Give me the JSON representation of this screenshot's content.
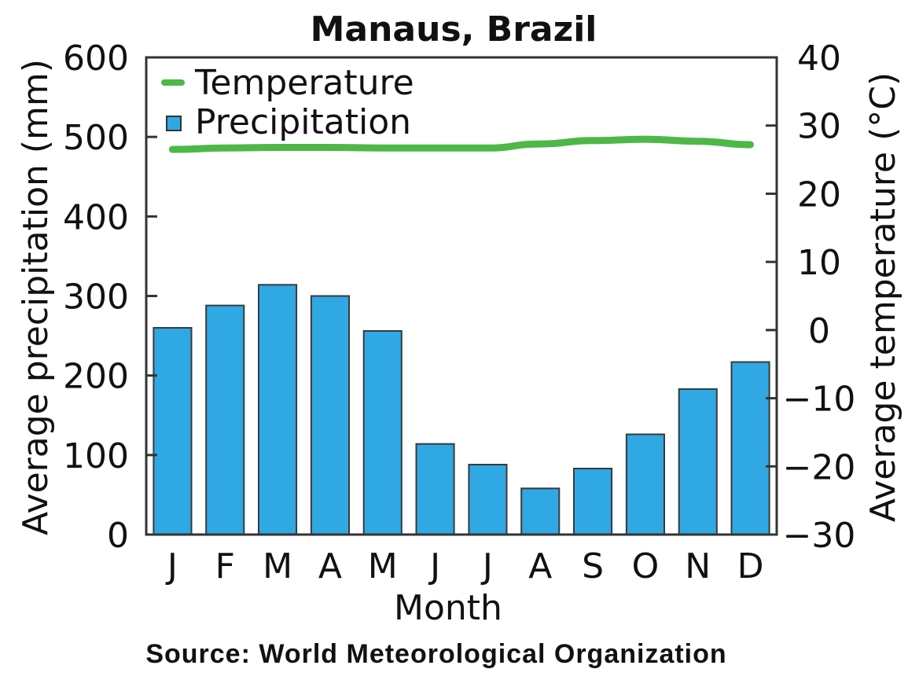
{
  "chart_data": {
    "type": "bar",
    "title": "Manaus, Brazil",
    "xlabel": "Month",
    "ylabel": "Average precipitation (mm)",
    "y2label": "Average temperature (°C)",
    "source": "Source: World Meteorological Organization",
    "categories": [
      "J",
      "F",
      "M",
      "A",
      "M",
      "J",
      "J",
      "A",
      "S",
      "O",
      "N",
      "D"
    ],
    "ylim": [
      0,
      600
    ],
    "y_ticks": [
      "0",
      "100",
      "200",
      "300",
      "400",
      "500",
      "600"
    ],
    "y2lim": [
      -30,
      40
    ],
    "y2_ticks": [
      "-30",
      "-20",
      "-10",
      "0",
      "10",
      "20",
      "30",
      "40"
    ],
    "legend_position": "top-left",
    "grid": false,
    "series": [
      {
        "name": "Precipitation",
        "kind": "bar",
        "axis": "left",
        "color": "#2fa8e4",
        "values": [
          260,
          288,
          314,
          300,
          256,
          114,
          88,
          58,
          83,
          126,
          183,
          217
        ]
      },
      {
        "name": "Temperature",
        "kind": "line",
        "axis": "right",
        "color": "#4db848",
        "values": [
          26.5,
          26.7,
          26.8,
          26.8,
          26.7,
          26.7,
          26.7,
          27.3,
          27.8,
          28.0,
          27.7,
          27.2
        ]
      }
    ]
  }
}
